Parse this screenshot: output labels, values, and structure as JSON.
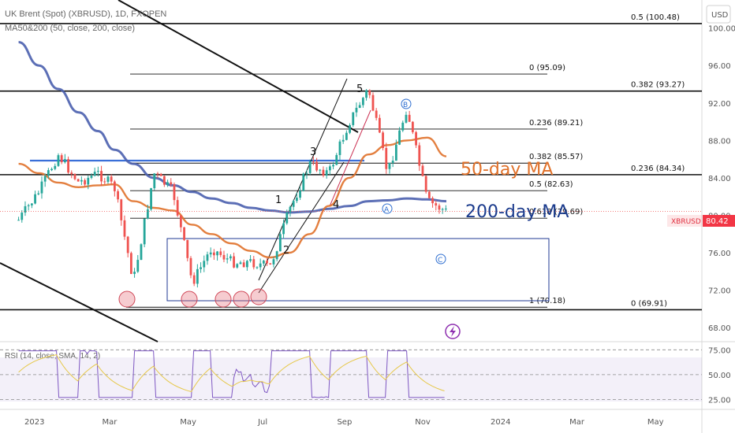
{
  "header": {
    "symbol_line": "UK Brent (Spot) (XBRUSD), 1D, FXOPEN",
    "indicator_line": "MA50&200 (50, close, 200, close)",
    "currency_button": "USD"
  },
  "rsi": {
    "label": "RSI (14, close, SMA, 14, 2)",
    "ticks": [
      "75.00",
      "50.00",
      "25.00"
    ],
    "levels": [
      75,
      50,
      25
    ],
    "ylim": [
      15,
      80
    ]
  },
  "price_axis": {
    "ticks": [
      "100.00",
      "96.00",
      "92.00",
      "88.00",
      "84.00",
      "80.00",
      "76.00",
      "72.00",
      "68.00"
    ],
    "tick_values": [
      100,
      96,
      92,
      88,
      84,
      80,
      76,
      72,
      68
    ],
    "last_price_symbol": "XBRUSD",
    "last_price": "80.42",
    "last_price_value": 80.42
  },
  "time_axis": {
    "labels": [
      "2023",
      "Mar",
      "May",
      "Jul",
      "Sep",
      "Nov",
      "2024",
      "Mar",
      "May"
    ],
    "label_dates": [
      "2023-01-01",
      "2023-03-01",
      "2023-05-01",
      "2023-07-01",
      "2023-09-01",
      "2023-11-01",
      "2024-01-01",
      "2024-03-01",
      "2024-05-01"
    ]
  },
  "annotations": {
    "ma50_label": "50-day MA",
    "ma200_label": "200-day MA",
    "ma50_color": "#e0712a",
    "ma200_color": "#1a3a8c",
    "wave_labels": [
      "1",
      "2",
      "3",
      "4",
      "5"
    ],
    "abc_labels": [
      "A",
      "B",
      "C"
    ],
    "channel_color": "#000000",
    "box_color": "#1f3a93",
    "resistance_color": "#3a6fd8"
  },
  "fib_major": [
    {
      "text": "0.5 (100.48)",
      "value": 100.48
    },
    {
      "text": "0.382 (93.27)",
      "value": 93.27
    },
    {
      "text": "0.236 (84.34)",
      "value": 84.34
    },
    {
      "text": "0 (69.91)",
      "value": 69.91
    }
  ],
  "fib_minor": [
    {
      "text": "0 (95.09)",
      "value": 95.09
    },
    {
      "text": "0.236 (89.21)",
      "value": 89.21
    },
    {
      "text": "0.382 (85.57)",
      "value": 85.57
    },
    {
      "text": "0.5 (82.63)",
      "value": 82.63
    },
    {
      "text": "0.618 (79.69)",
      "value": 79.69
    },
    {
      "text": "1 (70.18)",
      "value": 70.18
    }
  ],
  "chart_data": {
    "type": "line",
    "title": "UK Brent (Spot) (XBRUSD), 1D, FXOPEN",
    "ylim": [
      66.5,
      103
    ],
    "grid": false,
    "legend": "none",
    "x": [
      "2022-12-20",
      "2023-01-05",
      "2023-01-20",
      "2023-02-05",
      "2023-02-20",
      "2023-03-05",
      "2023-03-20",
      "2023-04-05",
      "2023-04-20",
      "2023-05-05",
      "2023-05-20",
      "2023-06-05",
      "2023-06-20",
      "2023-07-05",
      "2023-07-20",
      "2023-08-05",
      "2023-08-20",
      "2023-09-05",
      "2023-09-20",
      "2023-10-05",
      "2023-10-20",
      "2023-11-05",
      "2023-11-20"
    ],
    "series": [
      {
        "name": "XBRUSD",
        "values": [
          79.5,
          82.5,
          86.5,
          83.5,
          84.5,
          83.0,
          73.0,
          84.5,
          82.5,
          72.8,
          76.5,
          75.0,
          75.0,
          74.5,
          80.5,
          85.5,
          84.5,
          90.0,
          93.5,
          84.5,
          91.5,
          81.5,
          80.4
        ]
      },
      {
        "name": "50-day MA",
        "values": [
          85.5,
          84.5,
          83.5,
          83.0,
          83.2,
          83.3,
          81.5,
          80.8,
          80.5,
          79.0,
          78.0,
          77.0,
          76.2,
          75.5,
          76.0,
          78.0,
          81.0,
          84.0,
          86.5,
          87.5,
          88.0,
          88.3,
          86.3
        ]
      },
      {
        "name": "200-day MA",
        "values": [
          98.5,
          96.0,
          93.5,
          91.0,
          89.0,
          87.0,
          85.5,
          84.0,
          83.2,
          82.5,
          81.8,
          81.3,
          80.8,
          80.5,
          80.3,
          80.4,
          80.7,
          81.0,
          81.5,
          81.6,
          81.8,
          81.7,
          81.5
        ]
      }
    ]
  }
}
